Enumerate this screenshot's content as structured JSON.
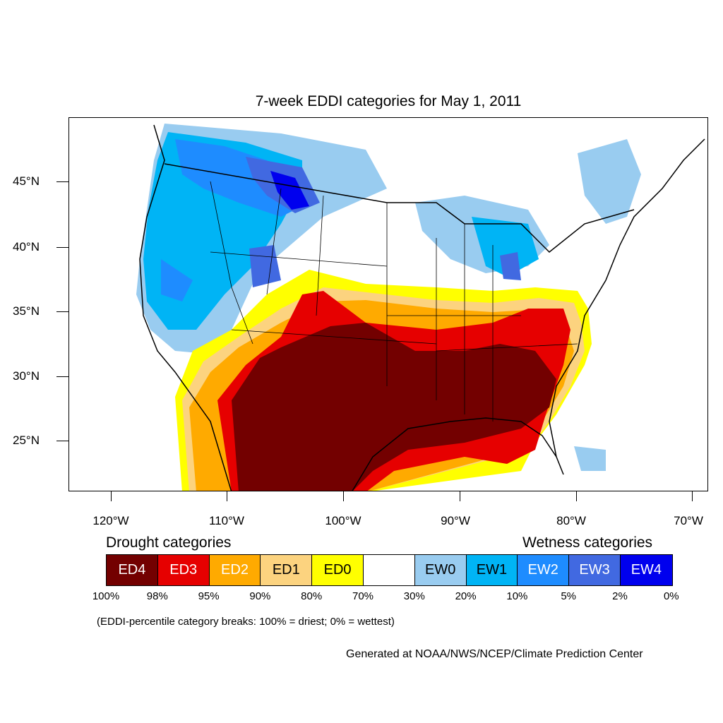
{
  "title": "7-week EDDI categories for May 1, 2011",
  "map": {
    "lat_labels": [
      "45°N",
      "40°N",
      "35°N",
      "30°N",
      "25°N"
    ],
    "lon_labels": [
      "120°W",
      "110°W",
      "100°W",
      "90°W",
      "80°W",
      "70°W"
    ]
  },
  "legend": {
    "drought_heading": "Drought categories",
    "wetness_heading": "Wetness categories",
    "categories": [
      {
        "label": "ED4",
        "color": "#730000",
        "text_color": "#ffffff"
      },
      {
        "label": "ED3",
        "color": "#e60000",
        "text_color": "#ffffff"
      },
      {
        "label": "ED2",
        "color": "#ffaa00",
        "text_color": "#ffffff"
      },
      {
        "label": "ED1",
        "color": "#fcd37f",
        "text_color": "#000000"
      },
      {
        "label": "ED0",
        "color": "#ffff00",
        "text_color": "#000000"
      },
      {
        "label": "",
        "color": "#ffffff",
        "text_color": "#000000"
      },
      {
        "label": "EW0",
        "color": "#99ccf0",
        "text_color": "#000000"
      },
      {
        "label": "EW1",
        "color": "#00b4f5",
        "text_color": "#000000"
      },
      {
        "label": "EW2",
        "color": "#1e8cff",
        "text_color": "#ffffff"
      },
      {
        "label": "EW3",
        "color": "#4169e1",
        "text_color": "#ffffff"
      },
      {
        "label": "EW4",
        "color": "#0000ee",
        "text_color": "#ffffff"
      }
    ],
    "breaks": [
      "100%",
      "98%",
      "95%",
      "90%",
      "80%",
      "70%",
      "30%",
      "20%",
      "10%",
      "5%",
      "2%",
      "0%"
    ]
  },
  "note": "(EDDI-percentile category breaks: 100% = driest; 0% = wettest)",
  "credit": "Generated at NOAA/NWS/NCEP/Climate Prediction Center"
}
